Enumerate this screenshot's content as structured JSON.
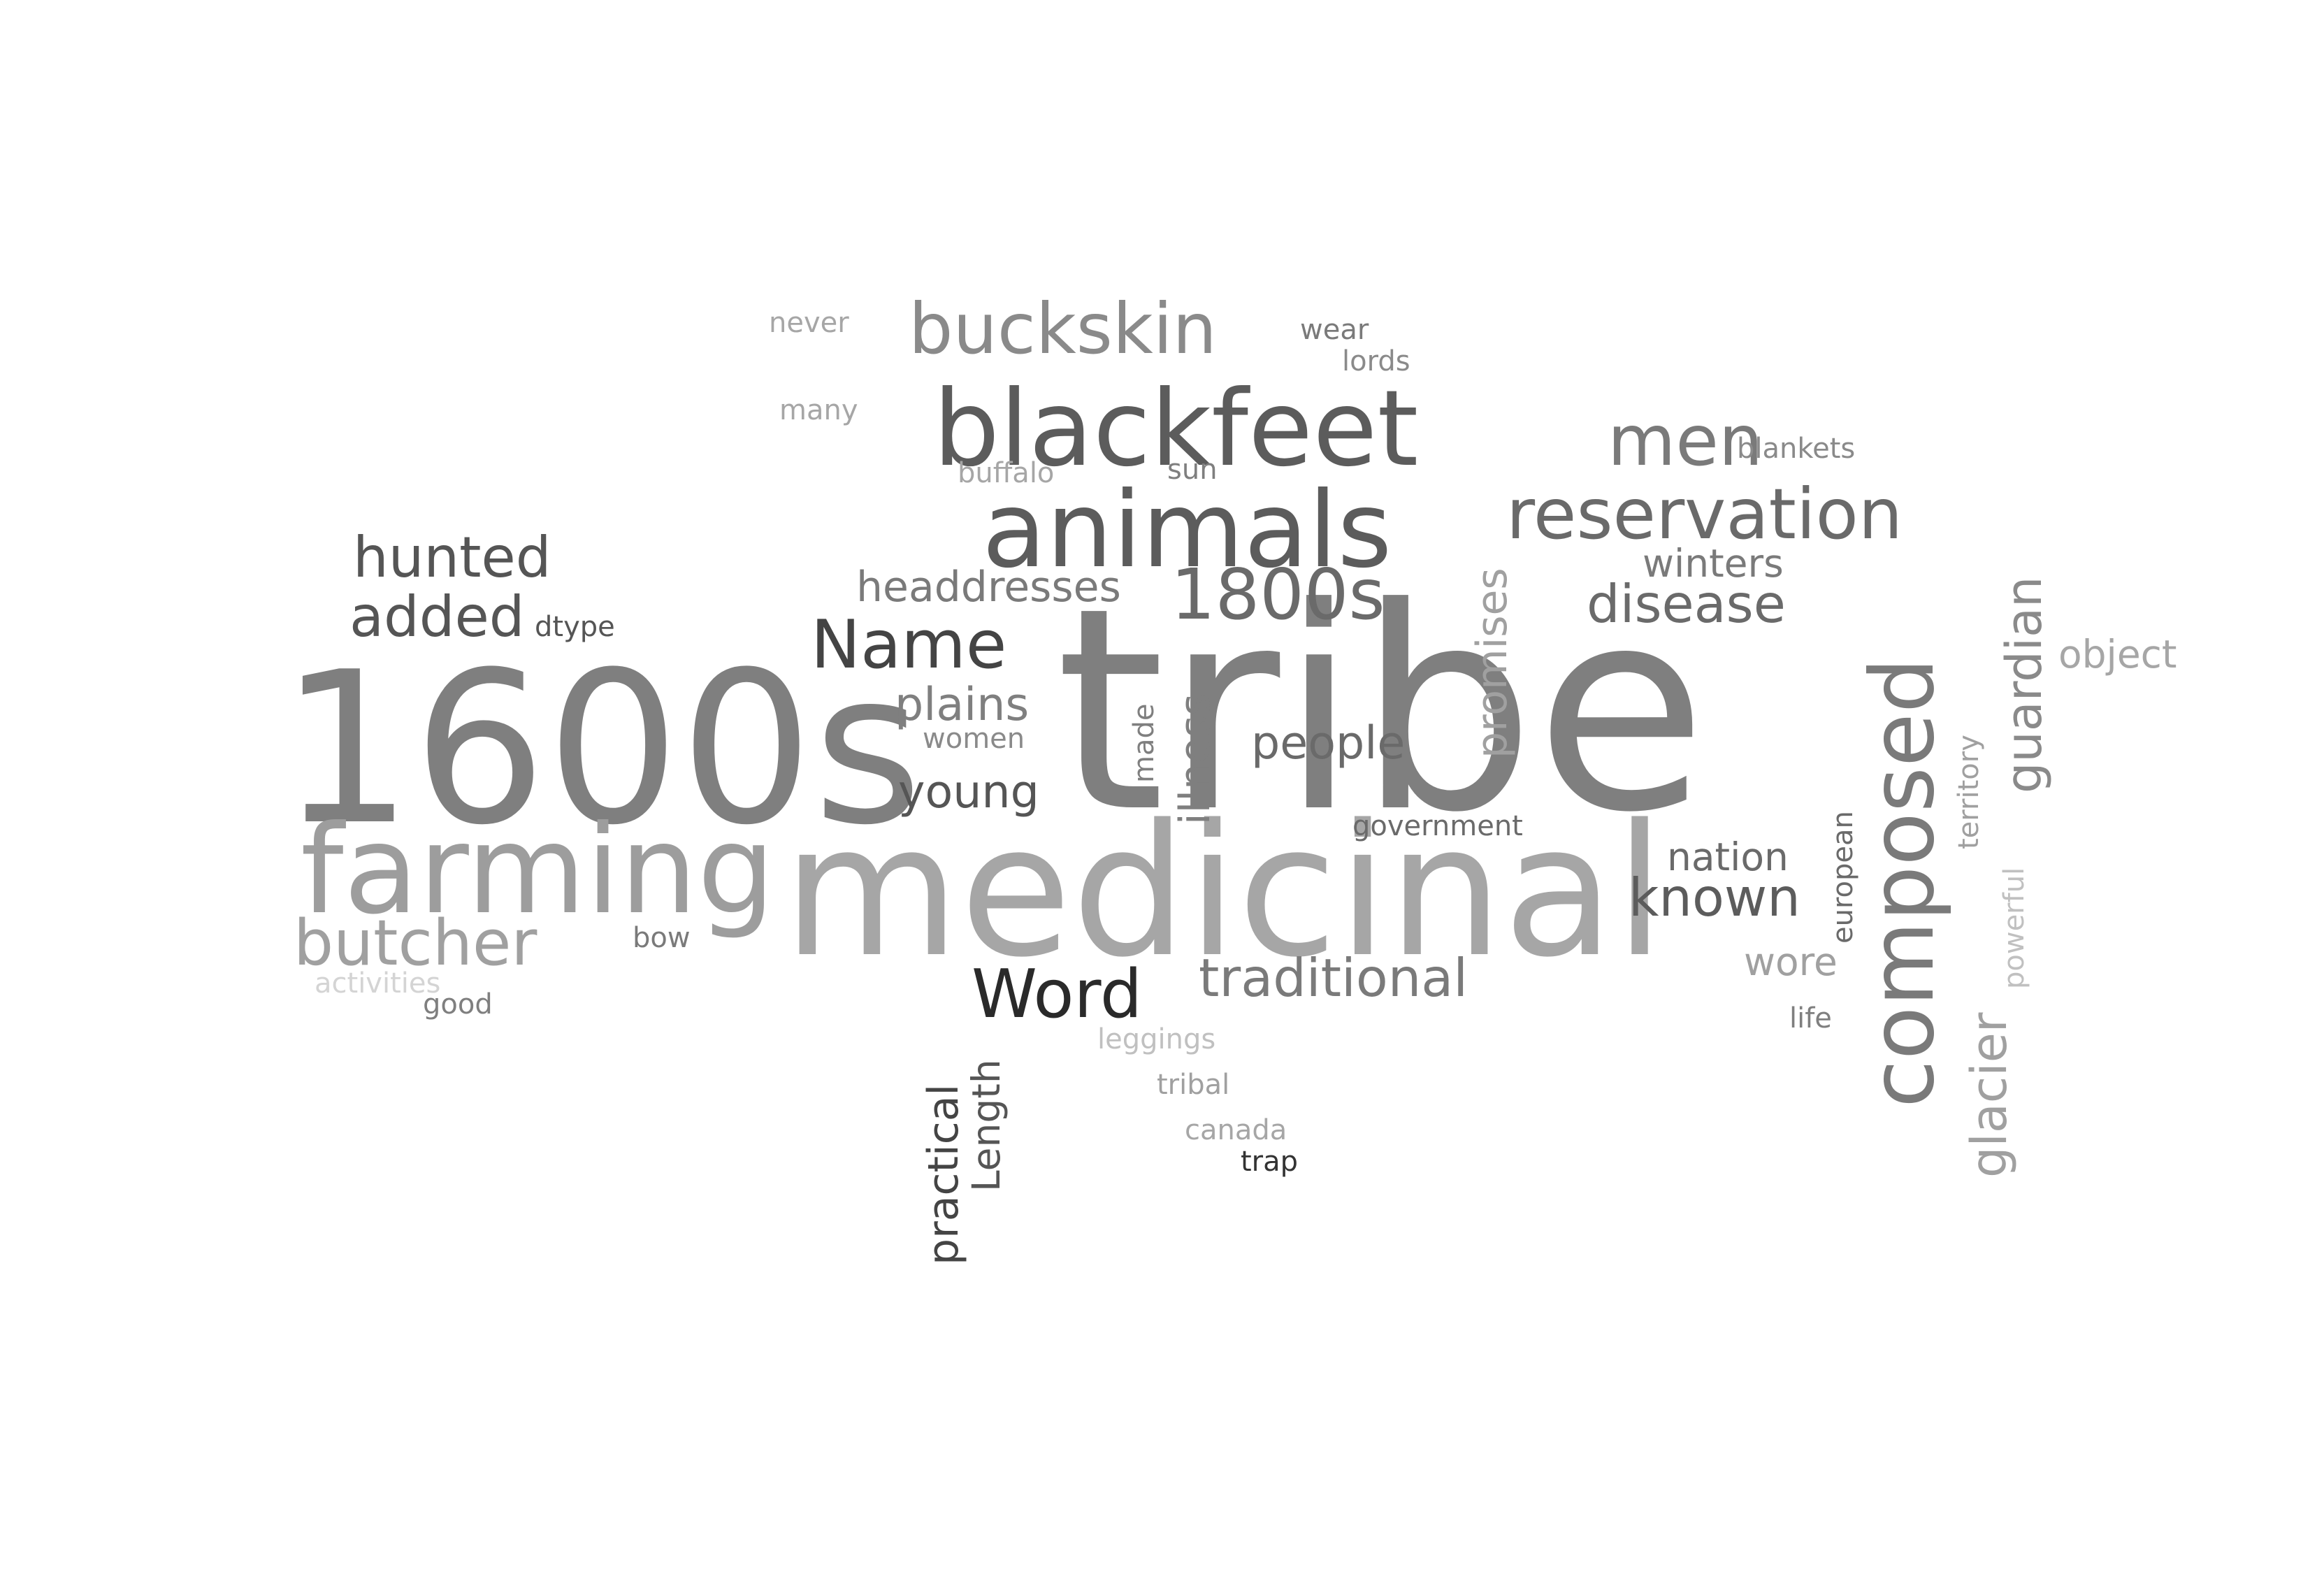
{
  "words": [
    {
      "text": "tribe",
      "color": "#7f7f7f"
    },
    {
      "text": "1600s",
      "color": "#7f7f7f"
    },
    {
      "text": "medicinal",
      "color": "#a6a6a6"
    },
    {
      "text": "blackfeet",
      "color": "#5c5c5c"
    },
    {
      "text": "animals",
      "color": "#5c5c5c"
    },
    {
      "text": "farming",
      "color": "#9d9d9d"
    },
    {
      "text": "composed",
      "color": "#7a7a7a"
    },
    {
      "text": "reservation",
      "color": "#6a6a6a"
    },
    {
      "text": "buckskin",
      "color": "#8a8a8a"
    },
    {
      "text": "butcher",
      "color": "#a0a0a0"
    },
    {
      "text": "1800s",
      "color": "#6a6a6a"
    },
    {
      "text": "men",
      "color": "#7a7a7a"
    },
    {
      "text": "Name",
      "color": "#444444"
    },
    {
      "text": "Word",
      "color": "#2a2a2a"
    },
    {
      "text": "hunted",
      "color": "#555555"
    },
    {
      "text": "added",
      "color": "#555555"
    },
    {
      "text": "disease",
      "color": "#6a6a6a"
    },
    {
      "text": "traditional",
      "color": "#7a7a7a"
    },
    {
      "text": "known",
      "color": "#5c5c5c"
    },
    {
      "text": "headdresses",
      "color": "#7a7a7a"
    },
    {
      "text": "guardian",
      "color": "#8a8a8a"
    },
    {
      "text": "glacier",
      "color": "#a0a0a0"
    },
    {
      "text": "people",
      "color": "#6a6a6a"
    },
    {
      "text": "plains",
      "color": "#7f7f7f"
    },
    {
      "text": "young",
      "color": "#555555"
    },
    {
      "text": "illness",
      "color": "#7f7f7f"
    },
    {
      "text": "promises",
      "color": "#a0a0a0"
    },
    {
      "text": "winters",
      "color": "#7a7a7a"
    },
    {
      "text": "nation",
      "color": "#6a6a6a"
    },
    {
      "text": "wore",
      "color": "#a0a0a0"
    },
    {
      "text": "object",
      "color": "#a6a6a6"
    },
    {
      "text": "practical",
      "color": "#444444"
    },
    {
      "text": "Length",
      "color": "#555555"
    },
    {
      "text": "government",
      "color": "#6a6a6a"
    },
    {
      "text": "european",
      "color": "#6a6a6a"
    },
    {
      "text": "territory",
      "color": "#a0a0a0"
    },
    {
      "text": "powerful",
      "color": "#c0c0c0"
    },
    {
      "text": "blankets",
      "color": "#8a8a8a"
    },
    {
      "text": "buffalo",
      "color": "#a6a6a6"
    },
    {
      "text": "sun",
      "color": "#7f7f7f"
    },
    {
      "text": "women",
      "color": "#8a8a8a"
    },
    {
      "text": "made",
      "color": "#7f7f7f"
    },
    {
      "text": "dtype",
      "color": "#555555"
    },
    {
      "text": "bow",
      "color": "#7a7a7a"
    },
    {
      "text": "activities",
      "color": "#d4d4d4"
    },
    {
      "text": "good",
      "color": "#7f7f7f"
    },
    {
      "text": "leggings",
      "color": "#c0c0c0"
    },
    {
      "text": "tribal",
      "color": "#a0a0a0"
    },
    {
      "text": "canada",
      "color": "#a6a6a6"
    },
    {
      "text": "trap",
      "color": "#333333"
    },
    {
      "text": "life",
      "color": "#7f7f7f"
    },
    {
      "text": "never",
      "color": "#a6a6a6"
    },
    {
      "text": "wear",
      "color": "#7a7a7a"
    },
    {
      "text": "lords",
      "color": "#8a8a8a"
    },
    {
      "text": "many",
      "color": "#a6a6a6"
    }
  ]
}
